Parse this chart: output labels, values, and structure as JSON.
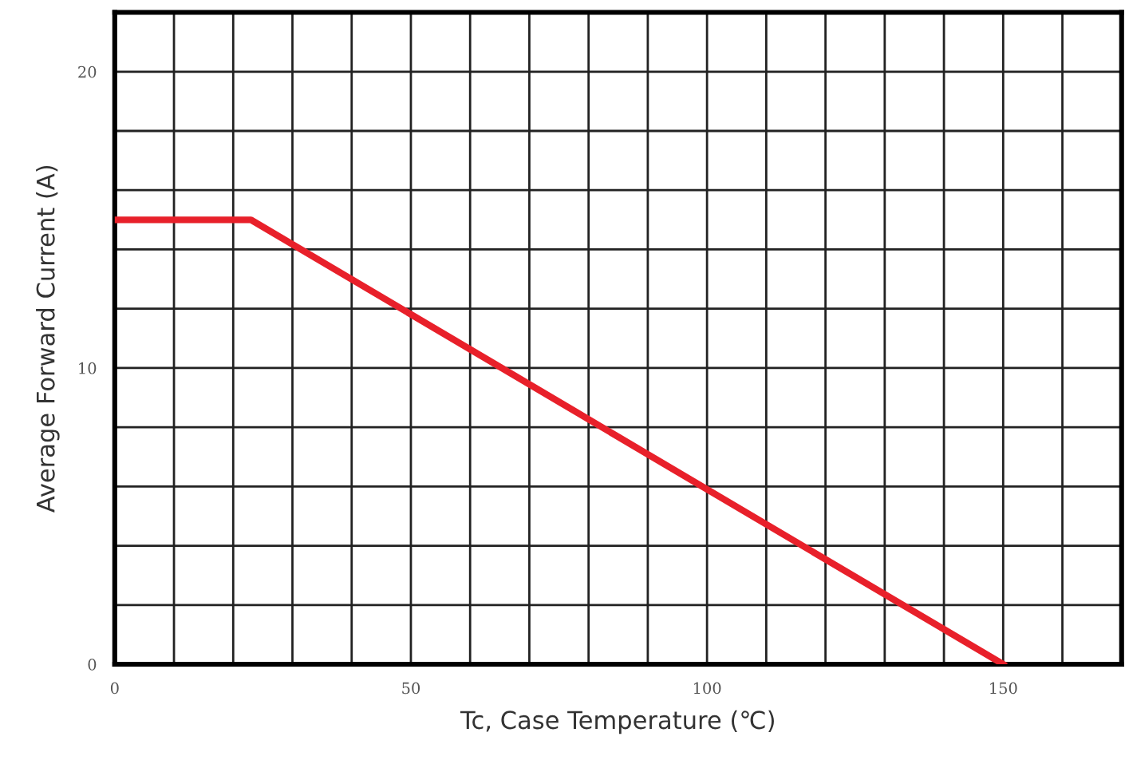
{
  "chart_data": {
    "type": "line",
    "xlabel": "Tc, Case Temperature (℃)",
    "ylabel": "Average Forward Current (A)",
    "x": [
      0,
      23,
      150
    ],
    "series": [
      {
        "color": "#e8202a",
        "values": [
          15,
          15,
          0
        ]
      }
    ],
    "xlim": [
      0,
      170
    ],
    "ylim": [
      0,
      22
    ],
    "xticks": [
      0,
      {
        "value": 10,
        "label": null
      },
      {
        "value": 20,
        "label": null
      },
      {
        "value": 30,
        "label": null
      },
      {
        "value": 40,
        "label": null
      },
      50,
      {
        "value": 60,
        "label": null
      },
      {
        "value": 70,
        "label": null
      },
      {
        "value": 80,
        "label": null
      },
      {
        "value": 90,
        "label": null
      },
      100,
      {
        "value": 110,
        "label": null
      },
      {
        "value": 120,
        "label": null
      },
      {
        "value": 130,
        "label": null
      },
      {
        "value": 140,
        "label": null
      },
      150,
      {
        "value": 160,
        "label": null
      }
    ],
    "yticks": [
      0,
      {
        "value": 2,
        "label": null
      },
      {
        "value": 4,
        "label": null
      },
      {
        "value": 6,
        "label": null
      },
      {
        "value": 8,
        "label": null
      },
      10,
      {
        "value": 12,
        "label": null
      },
      {
        "value": 14,
        "label": null
      },
      {
        "value": 16,
        "label": null
      },
      {
        "value": 18,
        "label": null
      },
      20
    ],
    "grid": true,
    "legend": false,
    "marker": "none",
    "line_style": "solid"
  }
}
